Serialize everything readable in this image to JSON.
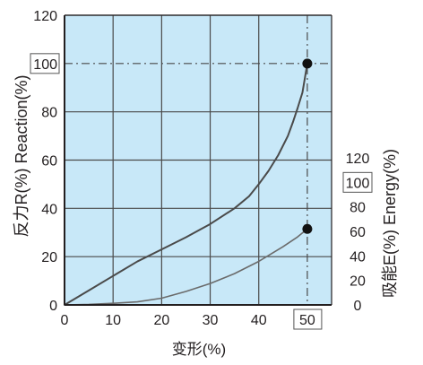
{
  "chart_data": {
    "type": "line",
    "title": "",
    "xlabel": "变形(%)",
    "ylabel_left": "反力R(%) Reaction(%)",
    "ylabel_right": "吸能E(%) Energy(%)",
    "xlim": [
      0,
      55
    ],
    "ylim_left": [
      0,
      120
    ],
    "ylim_right": [
      0,
      120
    ],
    "x_ticks": [
      "0",
      "10",
      "20",
      "30",
      "40",
      "50"
    ],
    "y_left_ticks": [
      "0",
      "20",
      "40",
      "60",
      "80",
      "100",
      "120"
    ],
    "y_right_ticks": [
      "0",
      "20",
      "40",
      "60",
      "80",
      "100",
      "120"
    ],
    "highlighted_ticks": {
      "x": "50",
      "y_left": "100",
      "y_right": "100"
    },
    "grid": true,
    "legend": "none",
    "series": [
      {
        "axis": "left",
        "color": "#4a4a4a",
        "x": [
          0,
          5,
          10,
          15,
          20,
          25,
          30,
          35,
          38,
          40,
          42,
          44,
          46,
          47,
          48,
          49,
          50
        ],
        "y": [
          0,
          6,
          12,
          18,
          23,
          28,
          33.5,
          40,
          45,
          50,
          55.5,
          62,
          70,
          75.5,
          81.5,
          88,
          100
        ]
      },
      {
        "axis": "right",
        "color": "#6b6b6b",
        "x": [
          0,
          5,
          10,
          15,
          20,
          25,
          30,
          35,
          40,
          45,
          48,
          50
        ],
        "y": [
          0,
          0.4,
          1.3,
          2.5,
          5.5,
          11,
          17.5,
          25.5,
          35.5,
          47.5,
          55.5,
          62
        ]
      }
    ],
    "markers": [
      {
        "x": 50,
        "y": 100,
        "axis": "left"
      },
      {
        "x": 50,
        "y": 62,
        "axis": "right"
      }
    ],
    "reference_lines": [
      {
        "orientation": "horizontal",
        "value": 100,
        "axis": "left"
      },
      {
        "orientation": "vertical",
        "value": 50
      }
    ],
    "colors": {
      "plot_background": "#c8e8f8",
      "grid": "#4a4a4a",
      "axis": "#231f20",
      "marker": "#111111"
    }
  }
}
